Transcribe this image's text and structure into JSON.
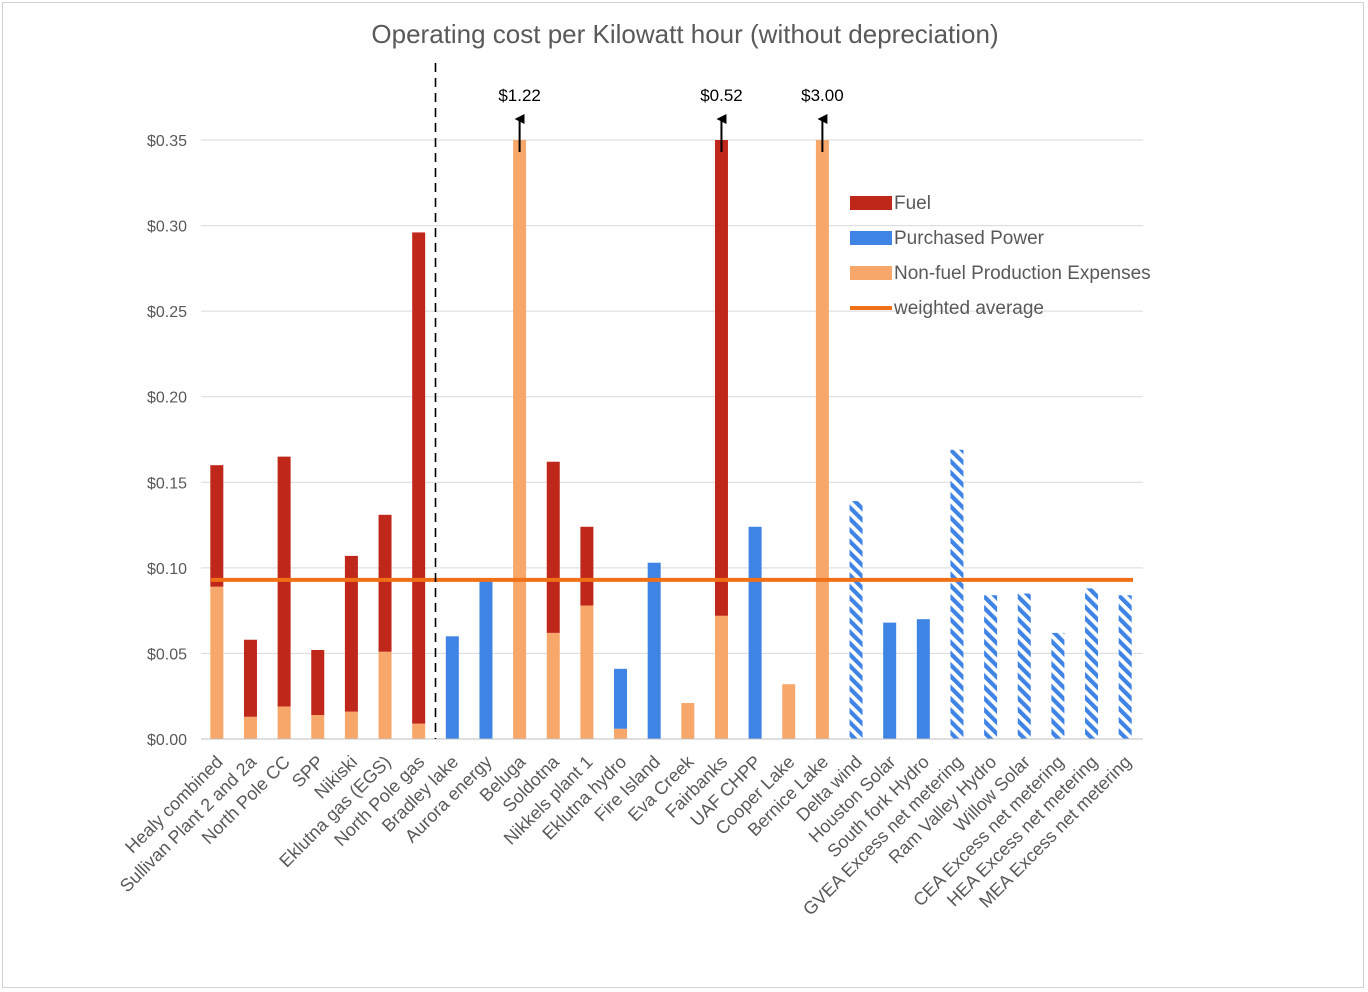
{
  "chart_data": {
    "type": "bar",
    "stacked": true,
    "title": "Operating cost per Kilowatt hour (without depreciation)",
    "xlabel": "",
    "ylabel": "",
    "ylim": [
      0,
      0.35
    ],
    "yticks": [
      "$0.00",
      "$0.05",
      "$0.10",
      "$0.15",
      "$0.20",
      "$0.25",
      "$0.30",
      "$0.35"
    ],
    "ytick_values": [
      0,
      0.05,
      0.1,
      0.15,
      0.2,
      0.25,
      0.3,
      0.35
    ],
    "grid": true,
    "categories": [
      "Healy combined",
      "Sullivan Plant 2 and 2a",
      "North Pole CC",
      "SPP",
      "Nikiski",
      "Eklutna gas (EGS)",
      "North Pole gas",
      "Bradley lake",
      "Aurora energy",
      "Beluga",
      "Soldotna",
      "Nikkels plant 1",
      "Eklutna hydro",
      "Fire Island",
      "Eva Creek",
      "Fairbanks",
      "UAF CHPP",
      "Cooper Lake",
      "Bernice Lake",
      "Delta wind",
      "Houston Solar",
      "South fork Hydro",
      "GVEA Excess net metering",
      "Ram Valley Hydro",
      "Willow Solar",
      "CEA Excess net metering",
      "HEA Excess net metering",
      "MEA Excess net metering"
    ],
    "series": [
      {
        "name": "Non-fuel Production Expenses",
        "color": "#F8A76A",
        "values": [
          0.089,
          0.013,
          0.019,
          0.014,
          0.016,
          0.051,
          0.009,
          0,
          0,
          0.35,
          0.062,
          0.078,
          0.006,
          0,
          0.021,
          0.072,
          0,
          0.032,
          0.35,
          0,
          0,
          0,
          0,
          0,
          0,
          0,
          0,
          0
        ]
      },
      {
        "name": "Purchased Power",
        "color": "#3F84E5",
        "values": [
          0,
          0,
          0,
          0,
          0,
          0,
          0,
          0.06,
          0.093,
          0,
          0,
          0,
          0.035,
          0.103,
          0,
          0,
          0.124,
          0,
          0,
          0.139,
          0.068,
          0.07,
          0.169,
          0.084,
          0.085,
          0.062,
          0.088,
          0.084
        ]
      },
      {
        "name": "Fuel",
        "color": "#C0271B",
        "values": [
          0.071,
          0.045,
          0.146,
          0.038,
          0.091,
          0.08,
          0.287,
          0,
          0,
          0,
          0.1,
          0.046,
          0,
          0,
          0,
          0.278,
          0,
          0,
          0,
          0,
          0,
          0,
          0,
          0,
          0,
          0,
          0,
          0
        ]
      }
    ],
    "hatched_categories": [
      "Delta wind",
      "GVEA Excess net metering",
      "Ram Valley Hydro",
      "Willow Solar",
      "CEA Excess net metering",
      "HEA Excess net metering",
      "MEA Excess net metering"
    ],
    "weighted_average": {
      "name": "weighted average",
      "value": 0.093,
      "color": "#F07017"
    },
    "divider_after_category": "North Pole gas",
    "annotations": [
      {
        "category": "Beluga",
        "text": "$1.22"
      },
      {
        "category": "Fairbanks",
        "text": "$0.52"
      },
      {
        "category": "Bernice Lake",
        "text": "$3.00"
      }
    ],
    "legend": {
      "placement": "top-right",
      "items": [
        {
          "label": "Fuel",
          "color": "#C0271B",
          "kind": "bar"
        },
        {
          "label": " Purchased Power",
          "color": "#3F84E5",
          "kind": "bar"
        },
        {
          "label": "Non-fuel Production Expenses",
          "color": "#F8A76A",
          "kind": "bar"
        },
        {
          "label": "weighted average",
          "color": "#F07017",
          "kind": "line"
        }
      ]
    }
  }
}
